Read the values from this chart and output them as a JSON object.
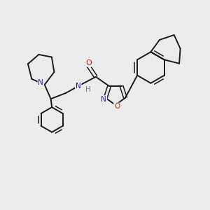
{
  "background_color": "#ebebeb",
  "bond_color": "#1a1a1a",
  "n_color": "#2020cc",
  "o_color": "#cc2020",
  "h_color": "#5a8a8a",
  "figsize": [
    3.0,
    3.0
  ],
  "dpi": 100,
  "xlim": [
    0,
    10
  ],
  "ylim": [
    0,
    10
  ]
}
